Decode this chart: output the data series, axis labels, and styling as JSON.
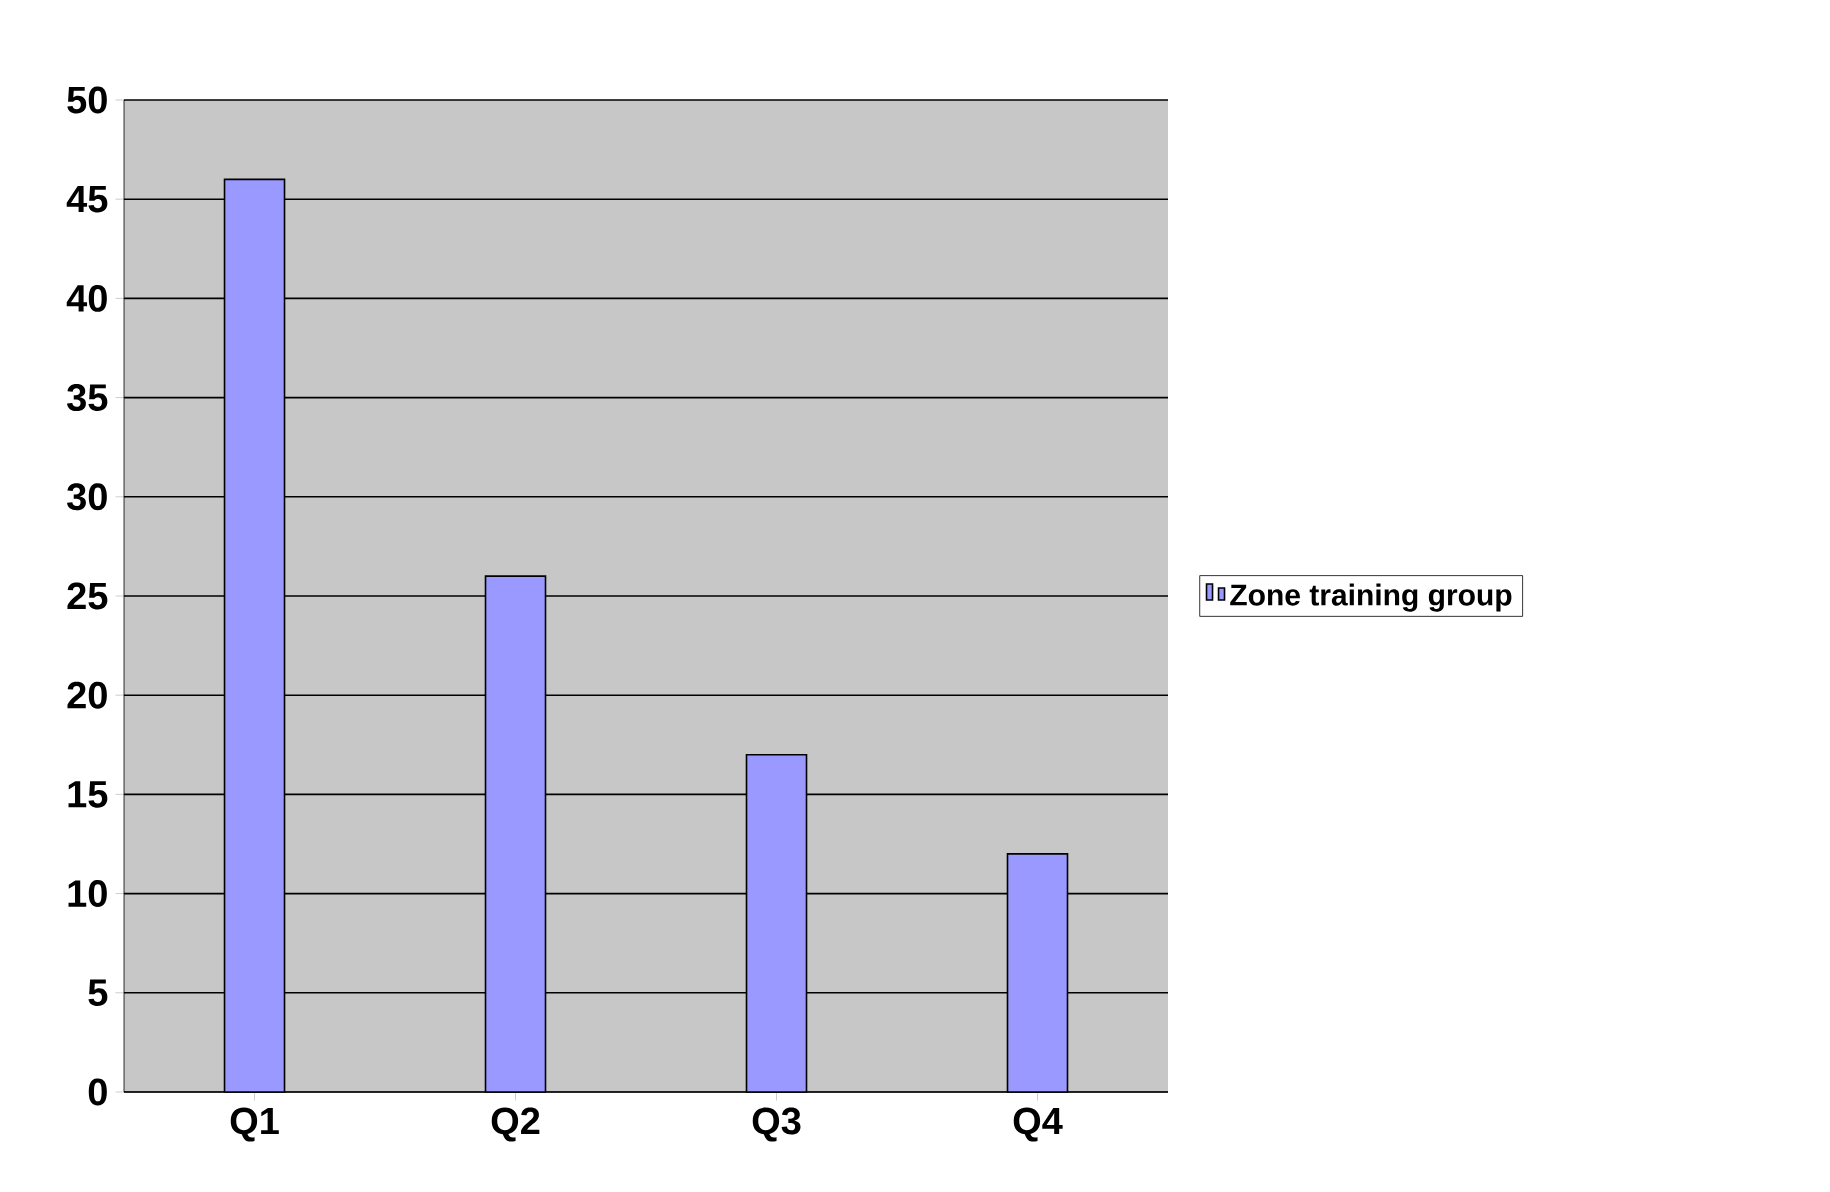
{
  "chart_data": {
    "type": "bar",
    "categories": [
      "Q1",
      "Q2",
      "Q3",
      "Q4"
    ],
    "series": [
      {
        "name": "Zone training group",
        "color": "#9999ff",
        "values": [
          46,
          26,
          17,
          12
        ]
      }
    ],
    "ylim": [
      0,
      50
    ],
    "yticks": [
      0,
      5,
      10,
      15,
      20,
      25,
      30,
      35,
      40,
      45,
      50
    ],
    "grid": "y",
    "legend": "right"
  }
}
